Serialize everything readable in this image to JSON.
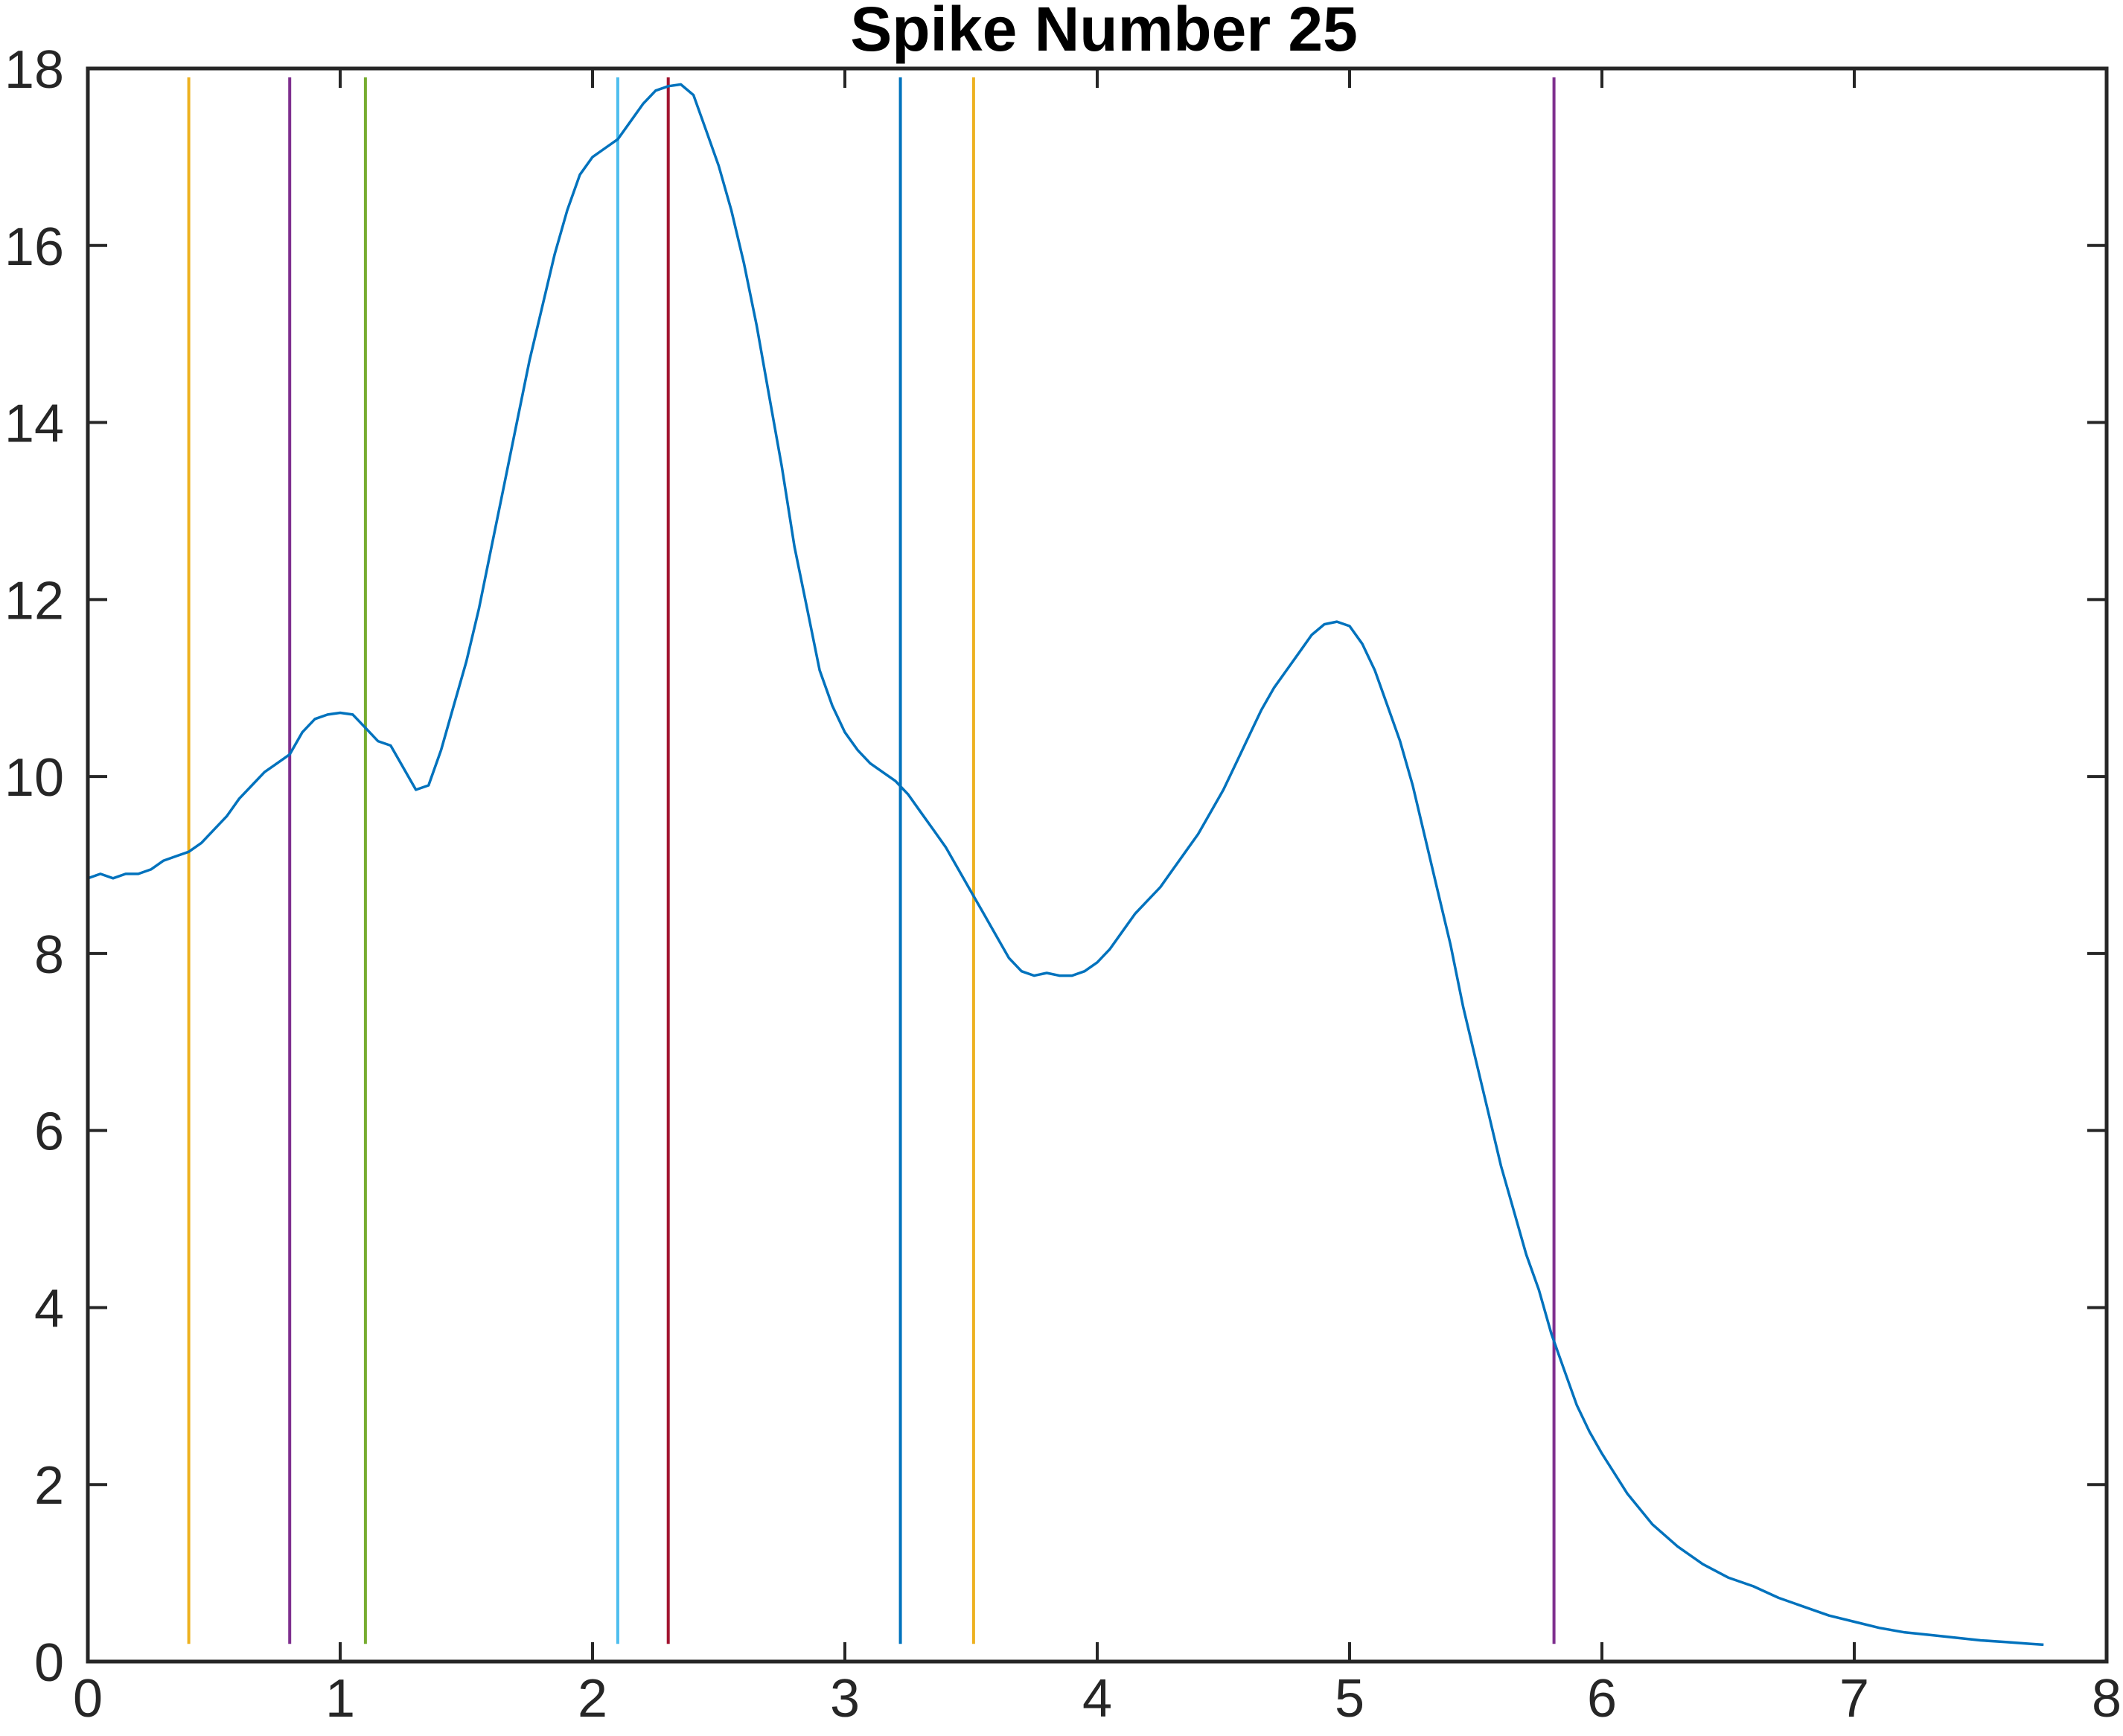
{
  "chart_data": {
    "type": "line",
    "title": "Spike Number 25",
    "xlabel": "",
    "ylabel": "",
    "xlim": [
      0,
      8
    ],
    "ylim": [
      0,
      18
    ],
    "xticks": [
      0,
      1,
      2,
      3,
      4,
      5,
      6,
      7,
      8
    ],
    "yticks": [
      0,
      2,
      4,
      6,
      8,
      10,
      12,
      14,
      16,
      18
    ],
    "grid": false,
    "legend": "none",
    "series": [
      {
        "color": "#0072BD",
        "x": [
          0,
          0.05,
          0.1,
          0.15,
          0.2,
          0.25,
          0.3,
          0.35,
          0.4,
          0.45,
          0.5,
          0.55,
          0.6,
          0.65,
          0.7,
          0.75,
          0.8,
          0.85,
          0.9,
          0.95,
          1.0,
          1.05,
          1.1,
          1.15,
          1.2,
          1.25,
          1.3,
          1.35,
          1.4,
          1.45,
          1.5,
          1.55,
          1.6,
          1.65,
          1.7,
          1.75,
          1.8,
          1.85,
          1.9,
          1.95,
          2.0,
          2.05,
          2.1,
          2.15,
          2.2,
          2.25,
          2.3,
          2.35,
          2.4,
          2.45,
          2.5,
          2.55,
          2.6,
          2.65,
          2.7,
          2.75,
          2.8,
          2.85,
          2.9,
          2.95,
          3.0,
          3.05,
          3.1,
          3.15,
          3.2,
          3.25,
          3.3,
          3.35,
          3.4,
          3.45,
          3.5,
          3.55,
          3.6,
          3.65,
          3.7,
          3.75,
          3.8,
          3.85,
          3.9,
          3.95,
          4.0,
          4.05,
          4.1,
          4.15,
          4.2,
          4.25,
          4.3,
          4.35,
          4.4,
          4.45,
          4.5,
          4.55,
          4.6,
          4.65,
          4.7,
          4.75,
          4.8,
          4.85,
          4.9,
          4.95,
          5.0,
          5.05,
          5.1,
          5.15,
          5.2,
          5.25,
          5.3,
          5.35,
          5.4,
          5.45,
          5.5,
          5.55,
          5.6,
          5.65,
          5.7,
          5.75,
          5.8,
          5.85,
          5.9,
          5.95,
          6.0,
          6.1,
          6.2,
          6.3,
          6.4,
          6.5,
          6.6,
          6.7,
          6.8,
          6.9,
          7.0,
          7.1,
          7.2,
          7.3,
          7.4,
          7.5,
          7.6,
          7.7,
          7.75
        ],
        "y": [
          8.85,
          8.9,
          8.85,
          8.9,
          8.9,
          8.95,
          9.05,
          9.1,
          9.15,
          9.25,
          9.4,
          9.55,
          9.75,
          9.9,
          10.05,
          10.15,
          10.25,
          10.5,
          10.65,
          10.7,
          10.72,
          10.7,
          10.55,
          10.4,
          10.35,
          10.1,
          9.85,
          9.9,
          10.3,
          10.8,
          11.3,
          11.9,
          12.6,
          13.3,
          14.0,
          14.7,
          15.3,
          15.9,
          16.4,
          16.8,
          17.0,
          17.1,
          17.2,
          17.4,
          17.6,
          17.75,
          17.8,
          17.82,
          17.7,
          17.3,
          16.9,
          16.4,
          15.8,
          15.1,
          14.3,
          13.5,
          12.6,
          11.9,
          11.2,
          10.8,
          10.5,
          10.3,
          10.15,
          10.05,
          9.95,
          9.8,
          9.6,
          9.4,
          9.2,
          8.95,
          8.7,
          8.45,
          8.2,
          7.95,
          7.8,
          7.75,
          7.78,
          7.75,
          7.75,
          7.8,
          7.9,
          8.05,
          8.25,
          8.45,
          8.6,
          8.75,
          8.95,
          9.15,
          9.35,
          9.6,
          9.85,
          10.15,
          10.45,
          10.75,
          11.0,
          11.2,
          11.4,
          11.6,
          11.72,
          11.75,
          11.7,
          11.5,
          11.2,
          10.8,
          10.4,
          9.9,
          9.3,
          8.7,
          8.1,
          7.4,
          6.8,
          6.2,
          5.6,
          5.1,
          4.6,
          4.2,
          3.7,
          3.3,
          2.9,
          2.6,
          2.35,
          1.9,
          1.55,
          1.3,
          1.1,
          0.95,
          0.85,
          0.72,
          0.62,
          0.52,
          0.45,
          0.38,
          0.33,
          0.3,
          0.27,
          0.24,
          0.22,
          0.2,
          0.19
        ]
      }
    ],
    "vertical_lines": [
      {
        "x": 0.0,
        "color": "#D95319"
      },
      {
        "x": 0.4,
        "color": "#EDB120"
      },
      {
        "x": 0.8,
        "color": "#7E2F8E"
      },
      {
        "x": 1.1,
        "color": "#77AC30"
      },
      {
        "x": 2.1,
        "color": "#4DBEEE"
      },
      {
        "x": 2.3,
        "color": "#A2142F"
      },
      {
        "x": 3.22,
        "color": "#0072BD"
      },
      {
        "x": 3.51,
        "color": "#EDB120"
      },
      {
        "x": 5.81,
        "color": "#7E2F8E"
      }
    ],
    "vertical_line_range": [
      0.2,
      17.9
    ]
  }
}
